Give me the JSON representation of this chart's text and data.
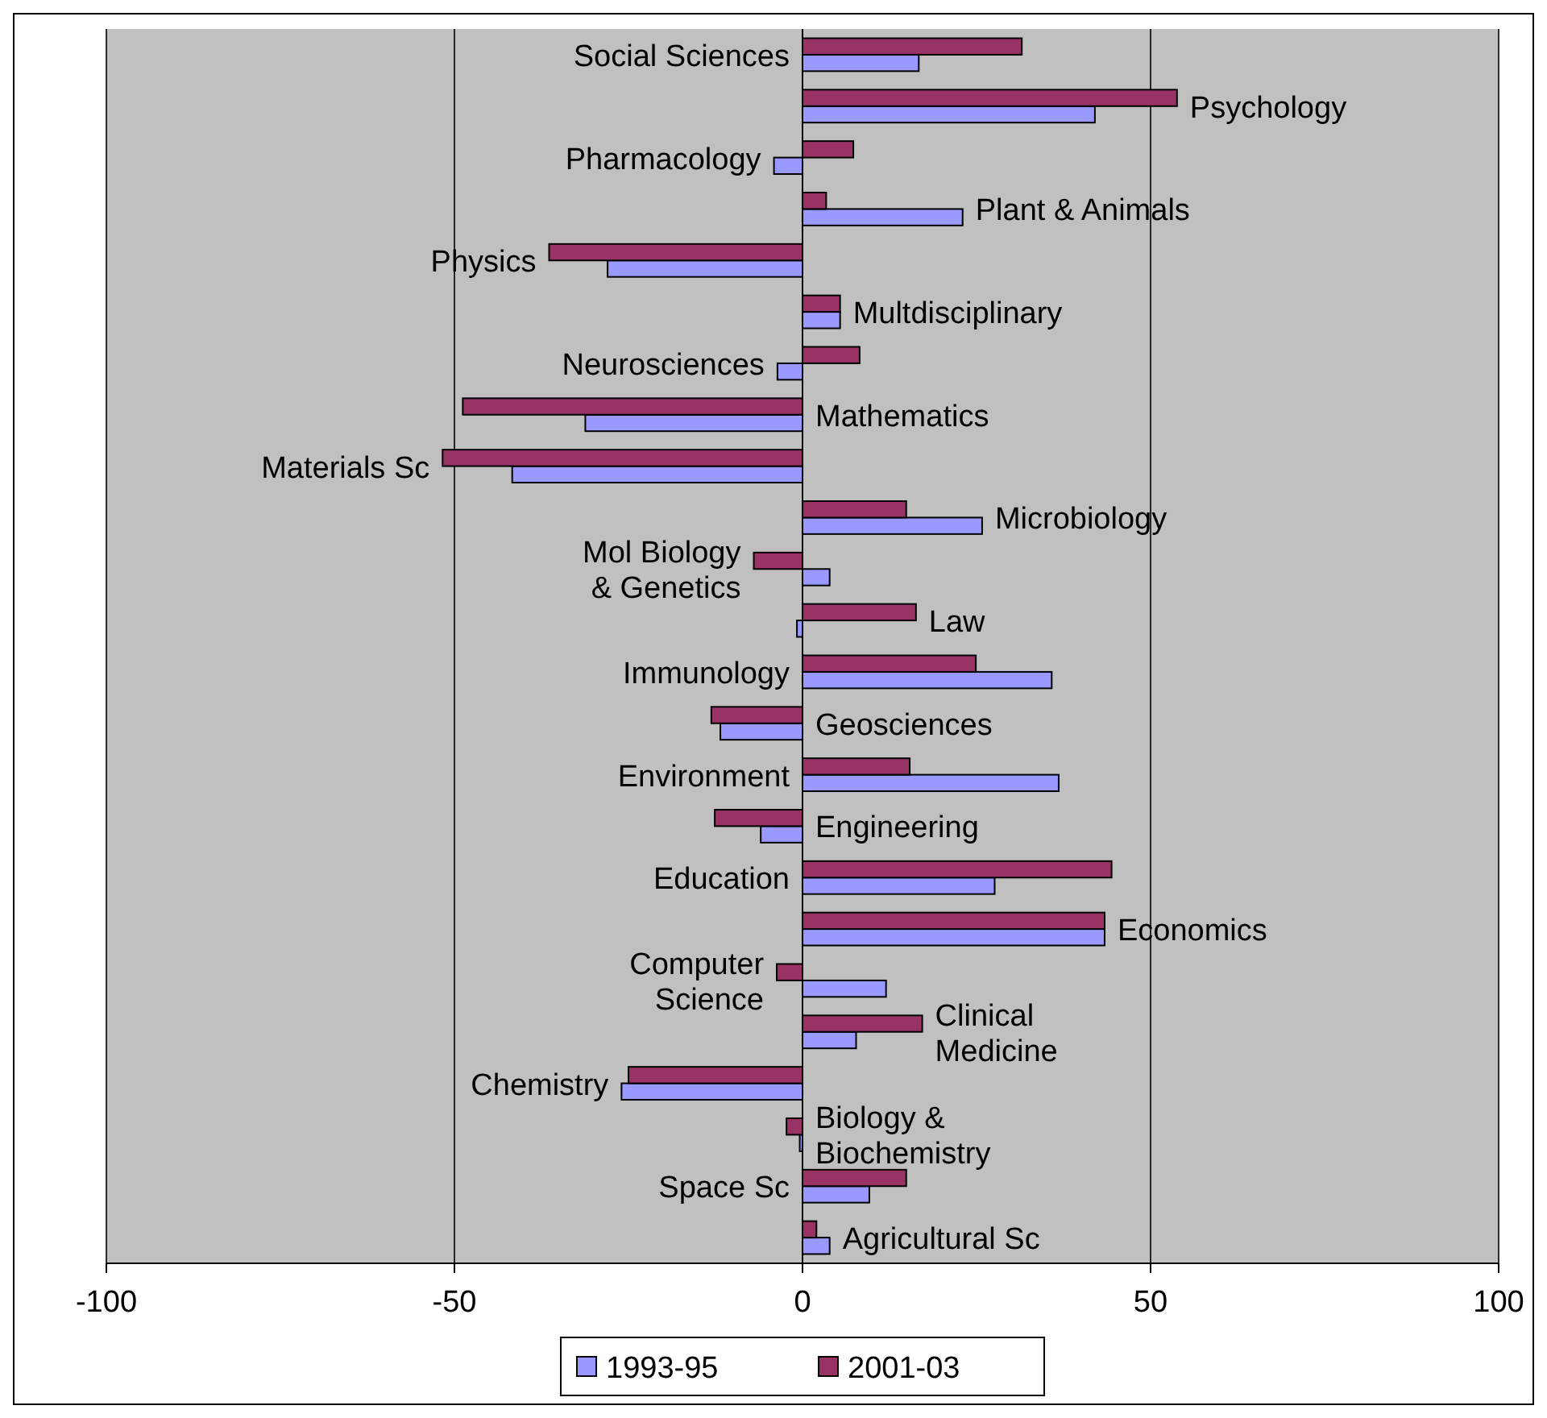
{
  "chart_data": {
    "type": "bar",
    "orientation": "horizontal",
    "categories": [
      "Social Sciences",
      "Psychology",
      "Pharmacology",
      "Plant & Animals",
      "Physics",
      "Multdisciplinary",
      "Neurosciences",
      "Mathematics",
      "Materials Sc",
      "Microbiology",
      "Mol Biology & Genetics",
      "Law",
      "Immunology",
      "Geosciences",
      "Environment",
      "Engineering",
      "Education",
      "Economics",
      "Computer Science",
      "Clinical Medicine",
      "Chemistry",
      "Biology & Biochemistry",
      "Space Sc",
      "Agricultural Sc"
    ],
    "series": [
      {
        "name": "1993-95",
        "color": "#9999ff",
        "values": [
          16.7,
          42,
          -4.1,
          23,
          -28,
          5.4,
          -3.6,
          -31.2,
          -41.7,
          25.8,
          3.9,
          -0.8,
          35.8,
          -11.8,
          36.8,
          -6,
          27.6,
          43.4,
          12,
          7.7,
          -26,
          -0.4,
          9.6,
          3.9
        ]
      },
      {
        "name": "2001-03",
        "color": "#993366",
        "values": [
          31.5,
          53.8,
          7.3,
          3.4,
          -36.4,
          5.4,
          8.2,
          -48.8,
          -51.7,
          14.9,
          -7,
          16.3,
          24.9,
          -13.1,
          15.4,
          -12.6,
          44.4,
          43.4,
          -3.7,
          17.2,
          -25,
          -2.3,
          14.9,
          2
        ]
      }
    ],
    "xlim": [
      -100,
      100
    ],
    "xticks": [
      -100,
      -50,
      0,
      50,
      100
    ],
    "grid": "x",
    "legend": "bottom"
  }
}
